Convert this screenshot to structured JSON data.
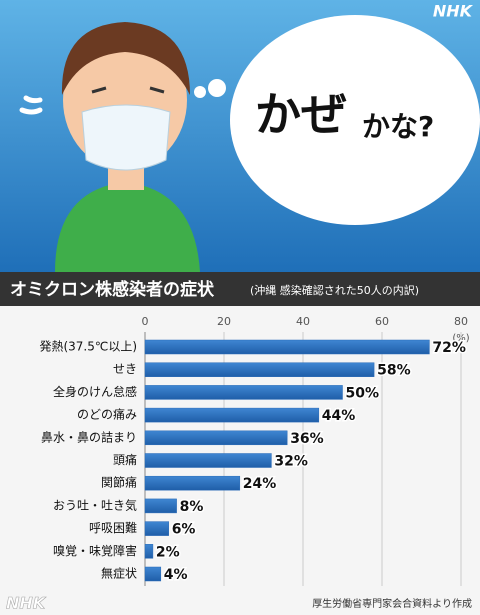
{
  "logo": "NHK",
  "illustration": {
    "bubble_main": "かぜ",
    "bubble_sub": "かな?"
  },
  "chart_data": {
    "type": "bar",
    "orientation": "horizontal",
    "title": "オミクロン株感染者の症状",
    "subtitle": "(沖縄 感染確認された50人の内訳)",
    "xlabel": "(%)",
    "categories": [
      "発熱(37.5℃以上)",
      "せき",
      "全身のけん怠感",
      "のどの痛み",
      "鼻水・鼻の詰まり",
      "頭痛",
      "関節痛",
      "おう吐・吐き気",
      "呼吸困難",
      "嗅覚・味覚障害",
      "無症状"
    ],
    "values": [
      72,
      58,
      50,
      44,
      36,
      32,
      24,
      8,
      6,
      2,
      4
    ],
    "value_labels": [
      "72%",
      "58%",
      "50%",
      "44%",
      "36%",
      "32%",
      "24%",
      "8%",
      "6%",
      "2%",
      "4%"
    ],
    "color": "#2b6cb8",
    "xlim": [
      0,
      80
    ],
    "xticks": [
      0,
      20,
      40,
      60,
      80
    ],
    "grid": true,
    "source": "厚生労働省専門家会合資料より作成"
  }
}
